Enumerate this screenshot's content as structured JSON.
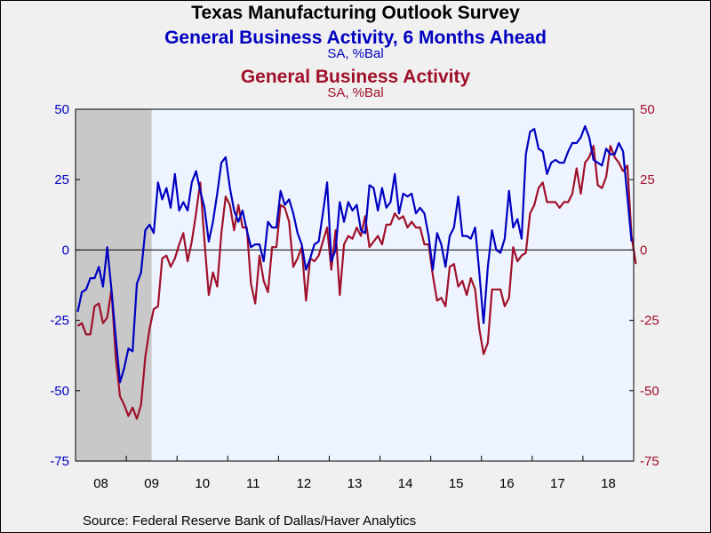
{
  "header": {
    "title": "Texas Manufacturing Outlook Survey",
    "series1_title": "General Business Activity, 6 Months Ahead",
    "series1_units": "SA, %Bal",
    "series2_title": "General Business Activity",
    "series2_units": "SA, %Bal"
  },
  "footer": {
    "source": "Source:  Federal Reserve Bank of Dallas/Haver Analytics"
  },
  "colors": {
    "series1": "#0000C0",
    "series2": "#A0102A",
    "plot_bg": "#EEF4FF",
    "recession": "#C8C8C8",
    "page_bg": "#F0F0F0"
  },
  "chart_data": {
    "type": "line",
    "x_start": "2008-01",
    "x_end": "2018-12",
    "x_tick_labels": [
      "08",
      "09",
      "10",
      "11",
      "12",
      "13",
      "14",
      "15",
      "16",
      "17",
      "18"
    ],
    "ylim": [
      -75,
      50
    ],
    "y_ticks": [
      50,
      25,
      0,
      -25,
      -50,
      -75
    ],
    "y_tick_labels": [
      "50",
      "25",
      "0",
      "-25",
      "-50",
      "-75"
    ],
    "y2_tick_labels": [
      "50",
      "25",
      "0",
      "-25",
      "-50",
      "-75"
    ],
    "recession": {
      "start": "2008-01",
      "end": "2009-06"
    },
    "zero_line": true,
    "series": [
      {
        "name": "General Business Activity, 6 Months Ahead",
        "axis": "left",
        "start": "2008-01",
        "values": [
          -22,
          -15,
          -14,
          -10,
          -10,
          -6,
          -13,
          1,
          -14,
          -31,
          -47,
          -42,
          -35,
          -36,
          -12,
          -8,
          7,
          9,
          6,
          24,
          18,
          22,
          15,
          27,
          14,
          17,
          14,
          24,
          28,
          21,
          15,
          3,
          10,
          20,
          31,
          33,
          22,
          14,
          10,
          14,
          7,
          1,
          2,
          2,
          -4,
          10,
          8,
          8,
          21,
          16,
          18,
          13,
          6,
          2,
          -7,
          -3,
          2,
          3,
          13,
          24,
          -4,
          0,
          17,
          10,
          17,
          14,
          16,
          7,
          6,
          23,
          22,
          14,
          22,
          15,
          17,
          27,
          13,
          20,
          19,
          20,
          13,
          15,
          13,
          5,
          -7,
          6,
          2,
          -6,
          5,
          8,
          19,
          5,
          5,
          4,
          8,
          -8,
          -26,
          -6,
          7,
          0,
          -1,
          4,
          21,
          8,
          11,
          4,
          34,
          42,
          43,
          36,
          35,
          27,
          31,
          32,
          31,
          31,
          35,
          38,
          38,
          40,
          44,
          40,
          32,
          31,
          30,
          36,
          34,
          34,
          38,
          35,
          19,
          3
        ]
      },
      {
        "name": "General Business Activity",
        "axis": "right",
        "start": "2008-01",
        "values": [
          -27,
          -26,
          -30,
          -30,
          -20,
          -19,
          -26,
          -24,
          -14,
          -38,
          -52,
          -55,
          -59,
          -56,
          -60,
          -55,
          -38,
          -28,
          -21,
          -20,
          -3,
          -2,
          -6,
          -3,
          2,
          6,
          -4,
          3,
          13,
          24,
          3,
          -16,
          -8,
          -13,
          6,
          19,
          16,
          7,
          16,
          8,
          8,
          -12,
          -19,
          -2,
          -11,
          -15,
          1,
          1,
          16,
          15,
          10,
          -6,
          -3,
          1,
          -18,
          -3,
          -4,
          -2,
          3,
          8,
          -7,
          7,
          -16,
          2,
          5,
          4,
          8,
          5,
          12,
          1,
          3,
          5,
          2,
          9,
          9,
          13,
          11,
          12,
          8,
          10,
          8,
          8,
          2,
          2,
          -9,
          -18,
          -17,
          -20,
          -6,
          -5,
          -13,
          -11,
          -16,
          -10,
          -14,
          -28,
          -37,
          -33,
          -14,
          -14,
          -14,
          -20,
          -17,
          1,
          -4,
          -2,
          -1,
          13,
          16,
          22,
          24,
          17,
          17,
          17,
          15,
          17,
          17,
          20,
          29,
          20,
          31,
          33,
          37,
          23,
          22,
          26,
          37,
          33,
          31,
          28,
          30,
          5,
          -5
        ]
      }
    ]
  }
}
